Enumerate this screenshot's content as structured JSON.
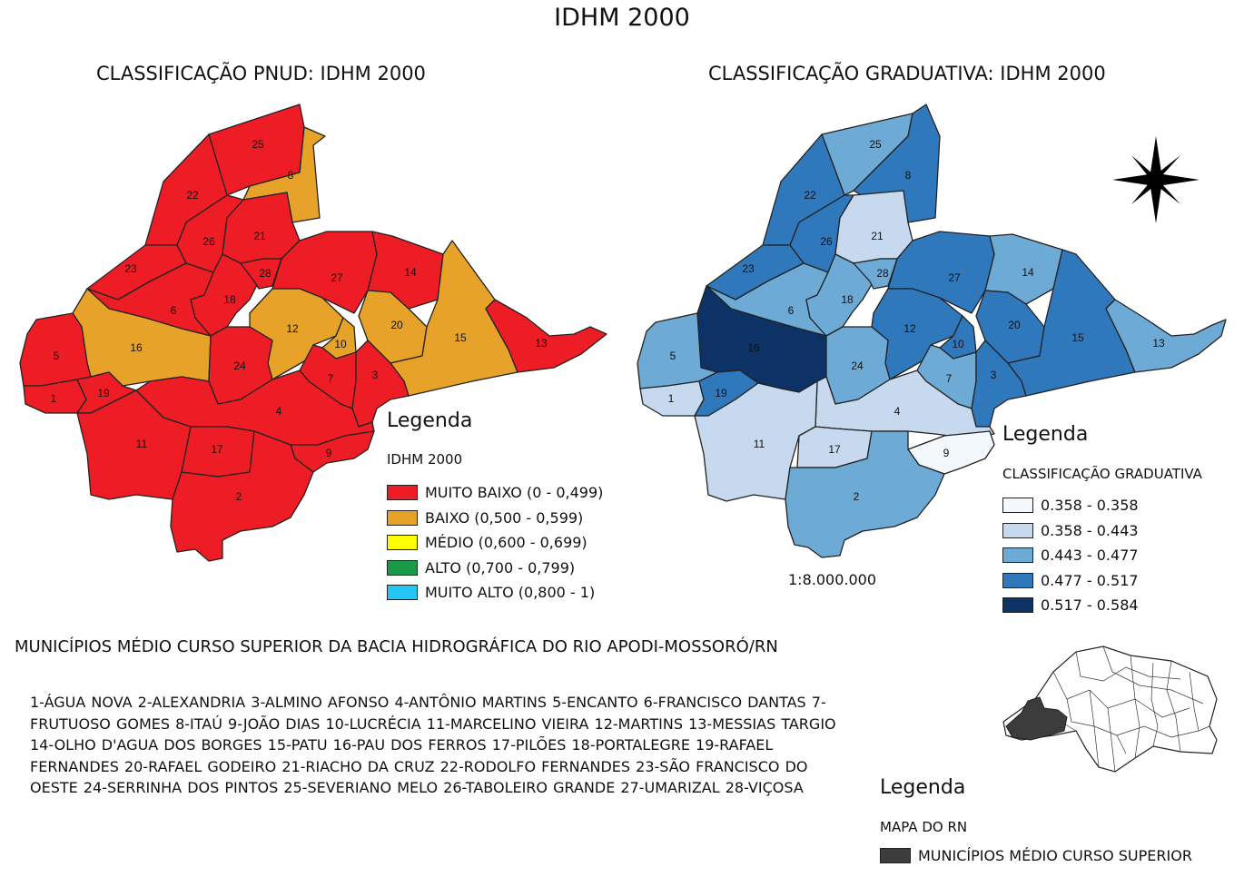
{
  "main_title": "IDHM 2000",
  "left_map": {
    "title": "CLASSIFICAÇÃO PNUD: IDHM 2000",
    "legend_heading": "Legenda",
    "legend_subtitle": "IDHM 2000",
    "legend_items": [
      {
        "label": "MUITO BAIXO (0 - 0,499)",
        "color": "#ee1c24"
      },
      {
        "label": "BAIXO (0,500 - 0,599)",
        "color": "#e6a229"
      },
      {
        "label": "MÉDIO (0,600 - 0,699)",
        "color": "#ffff00"
      },
      {
        "label": "ALTO (0,700 - 0,799)",
        "color": "#1a9a49"
      },
      {
        "label": "MUITO ALTO (0,800 - 1)",
        "color": "#24c6f5"
      }
    ],
    "municipality_numbers": [
      "1",
      "2",
      "3",
      "4",
      "5",
      "6",
      "7",
      "8",
      "9",
      "10",
      "11",
      "12",
      "13",
      "14",
      "15",
      "16",
      "17",
      "18",
      "19",
      "20",
      "21",
      "22",
      "23",
      "24",
      "25",
      "26",
      "27",
      "28"
    ]
  },
  "right_map": {
    "title": "CLASSIFICAÇÃO GRADUATIVA: IDHM 2000",
    "legend_heading": "Legenda",
    "legend_subtitle": "CLASSIFICAÇÃO GRADUATIVA",
    "legend_items": [
      {
        "label": "0.358 - 0.358",
        "color": "#f3f8fd"
      },
      {
        "label": "0.358 - 0.443",
        "color": "#c7d9ee"
      },
      {
        "label": "0.443 - 0.477",
        "color": "#6eaad6"
      },
      {
        "label": "0.477 - 0.517",
        "color": "#2e78bb"
      },
      {
        "label": "0.517 - 0.584",
        "color": "#0c3266"
      }
    ],
    "municipality_numbers": [
      "1",
      "2",
      "3",
      "4",
      "5",
      "6",
      "7",
      "8",
      "9",
      "10",
      "11",
      "12",
      "13",
      "14",
      "15",
      "16",
      "17",
      "18",
      "19",
      "20",
      "21",
      "22",
      "23",
      "24",
      "25",
      "26",
      "27",
      "28"
    ],
    "north_arrow_icon": "compass-star-icon",
    "scale": "1:8.000.000"
  },
  "municipalities": {
    "heading": "MUNICÍPIOS MÉDIO CURSO SUPERIOR DA BACIA HIDROGRÁFICA DO RIO APODI-MOSSORÓ/RN",
    "list_text": "1-ÁGUA NOVA  2-ALEXANDRIA  3-ALMINO AFONSO  4-ANTÔNIO MARTINS  5-ENCANTO   6-FRANCISCO DANTAS  7-FRUTUOSO GOMES  8-ITAÚ  9-JOÃO DIAS  10-LUCRÉCIA  11-MARCELINO VIEIRA  12-MARTINS  13-MESSIAS TARGIO  14-OLHO D'AGUA DOS BORGES  15-PATU  16-PAU DOS FERROS  17-PILÕES  18-PORTALEGRE  19-RAFAEL FERNANDES  20-RAFAEL GODEIRO  21-RIACHO DA CRUZ  22-RODOLFO FERNANDES  23-SÃO FRANCISCO DO OESTE  24-SERRINHA DOS PINTOS  25-SEVERIANO MELO  26-TABOLEIRO GRANDE  27-UMARIZAL  28-VIÇOSA"
  },
  "inset": {
    "legend_heading": "Legenda",
    "legend_subtitle": "MAPA DO RN",
    "legend_item": {
      "label": "MUNICÍPIOS MÉDIO CURSO SUPERIOR",
      "color": "#3c3c3c"
    }
  }
}
